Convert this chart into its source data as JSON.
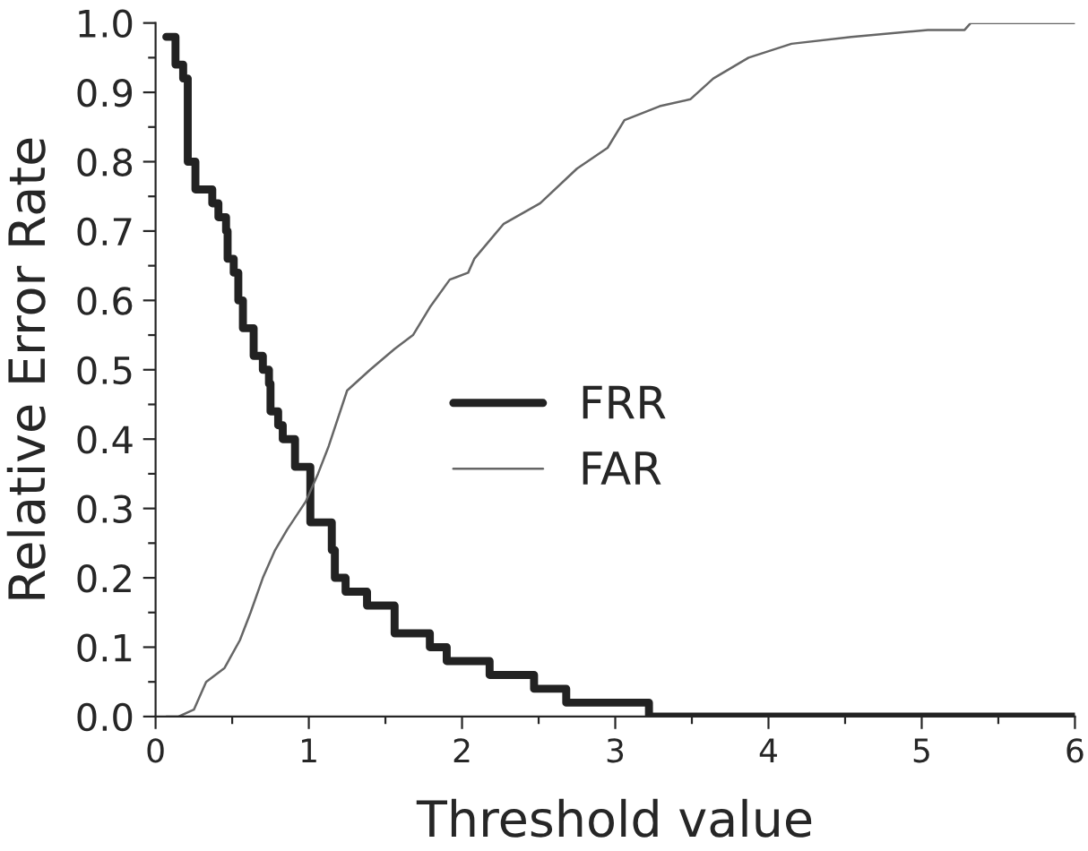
{
  "chart_data": {
    "type": "line",
    "xlabel": "Threshold value",
    "ylabel": "Relative Error Rate",
    "xlim": [
      0,
      6
    ],
    "xticks": [
      0,
      1,
      2,
      3,
      4,
      5,
      6
    ],
    "ylim": [
      0,
      1.0
    ],
    "yticks": [
      {
        "value": 0,
        "label": "0.0"
      },
      {
        "value": 0.1,
        "label": "0.1"
      },
      {
        "value": 0.2,
        "label": "0.2"
      },
      {
        "value": 0.3,
        "label": "0.3"
      },
      {
        "value": 0.4,
        "label": "0.4"
      },
      {
        "value": 0.5,
        "label": "0.5"
      },
      {
        "value": 0.6,
        "label": "0.6"
      },
      {
        "value": 0.7,
        "label": "0.7"
      },
      {
        "value": 0.8,
        "label": "0.8"
      },
      {
        "value": 0.9,
        "label": "0.9"
      },
      {
        "value": 1.0,
        "label": "1.0"
      }
    ],
    "grid": false,
    "legend": "center",
    "marker": "none",
    "series": [
      {
        "name": "FRR",
        "type": "step",
        "color": "#222222",
        "x": [
          0.07,
          0.13,
          0.18,
          0.21,
          0.26,
          0.37,
          0.41,
          0.46,
          0.47,
          0.51,
          0.54,
          0.57,
          0.64,
          0.7,
          0.74,
          0.75,
          0.8,
          0.83,
          0.91,
          1.01,
          1.15,
          1.17,
          1.24,
          1.38,
          1.56,
          1.79,
          1.9,
          2.18,
          2.47,
          2.68,
          3.22,
          6.0
        ],
        "values": [
          0.98,
          0.94,
          0.92,
          0.8,
          0.76,
          0.74,
          0.72,
          0.7,
          0.66,
          0.64,
          0.6,
          0.56,
          0.52,
          0.5,
          0.48,
          0.44,
          0.42,
          0.4,
          0.36,
          0.28,
          0.24,
          0.2,
          0.18,
          0.16,
          0.12,
          0.1,
          0.08,
          0.06,
          0.04,
          0.02,
          0.0,
          0.0
        ]
      },
      {
        "name": "FAR",
        "color": "#666666",
        "x": [
          0.07,
          0.15,
          0.25,
          0.33,
          0.45,
          0.55,
          0.62,
          0.7,
          0.78,
          0.86,
          0.98,
          1.06,
          1.13,
          1.25,
          1.4,
          1.56,
          1.68,
          1.79,
          1.92,
          2.04,
          2.08,
          2.27,
          2.51,
          2.75,
          2.95,
          3.06,
          3.29,
          3.49,
          3.64,
          3.87,
          4.15,
          4.54,
          5.04,
          5.28,
          5.32,
          6.0
        ],
        "values": [
          0.0,
          0.0,
          0.01,
          0.05,
          0.07,
          0.11,
          0.15,
          0.2,
          0.24,
          0.27,
          0.31,
          0.35,
          0.39,
          0.47,
          0.5,
          0.53,
          0.55,
          0.59,
          0.63,
          0.64,
          0.66,
          0.71,
          0.74,
          0.79,
          0.82,
          0.86,
          0.88,
          0.89,
          0.92,
          0.95,
          0.97,
          0.98,
          0.99,
          0.99,
          1.0,
          1.0
        ]
      }
    ]
  }
}
